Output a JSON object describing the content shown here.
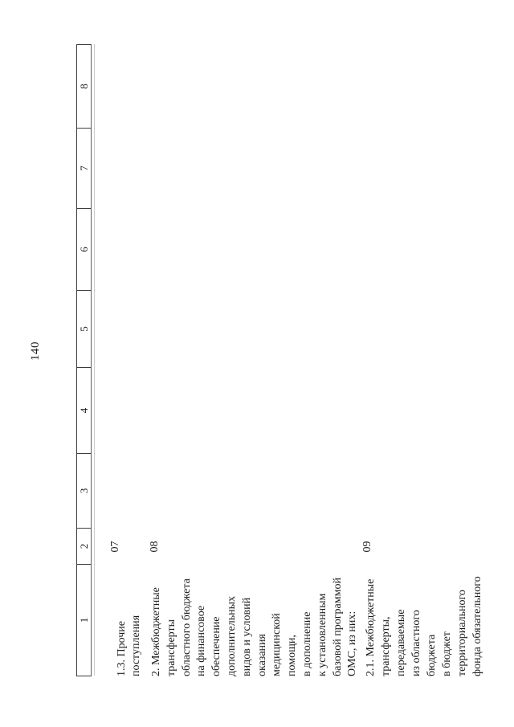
{
  "page": {
    "number": "140"
  },
  "table": {
    "header_columns": [
      "1",
      "2",
      "3",
      "4",
      "5",
      "6",
      "7",
      "8"
    ],
    "rows": [
      {
        "code": "07",
        "lines": [
          "1.3. Прочие",
          "поступления"
        ]
      },
      {
        "code": "08",
        "lines": [
          "2. Межбюджетные",
          "трансферты",
          "областного бюджета",
          "на финансовое",
          "обеспечение",
          "дополнительных",
          "видов и условий",
          "оказания",
          "медицинской",
          "помощи,",
          "в дополнение",
          "к установленным",
          "базовой программой",
          "ОМС, из них:"
        ]
      },
      {
        "code": "09",
        "lines": [
          "2.1. Межбюджетные",
          "трансферты,",
          "передаваемые",
          "из областного",
          "бюджета",
          "в бюджет",
          "территориального",
          "фонда обязательного"
        ]
      }
    ]
  }
}
